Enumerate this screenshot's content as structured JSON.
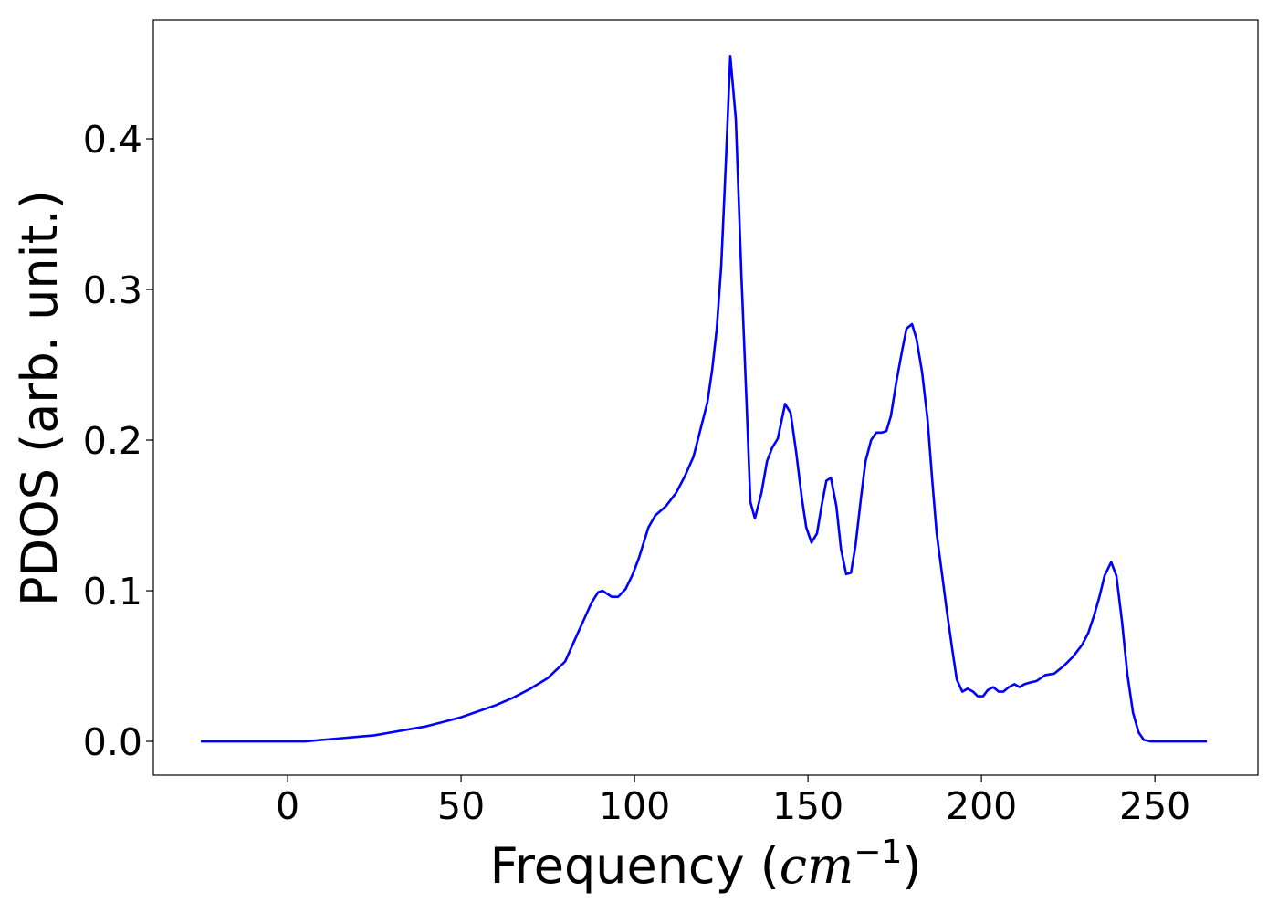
{
  "chart_data": {
    "type": "line",
    "xlabel": [
      "Frequency (",
      "cm",
      "−1",
      ")"
    ],
    "ylabel": "PDOS (arb. unit.)",
    "xlim": [
      -38.7,
      279.7
    ],
    "ylim": [
      -0.0224,
      0.4788
    ],
    "xticks": [
      0,
      50,
      100,
      150,
      200,
      250
    ],
    "yticks": [
      {
        "value": 0,
        "label": "0.0"
      },
      0.1,
      0.2,
      0.3,
      0.4
    ],
    "series": [
      {
        "color": "#0000ff",
        "x": [
          -25,
          0,
          5,
          10,
          15,
          20,
          25,
          30,
          35,
          40,
          45,
          50,
          55,
          60,
          65,
          70,
          75,
          80,
          82.9,
          87.6,
          89.5,
          90.8,
          93.4,
          95.3,
          97.4,
          99.5,
          101.3,
          104,
          106,
          109,
          112,
          114.5,
          117,
          119,
          121,
          122.4,
          123.7,
          125,
          126.3,
          127.6,
          129.2,
          130.8,
          132.4,
          133.4,
          134.7,
          136.6,
          138.2,
          139.7,
          141.3,
          143.4,
          145,
          146.6,
          148.2,
          149.5,
          151,
          152.6,
          153.9,
          155.3,
          156.6,
          158.2,
          159.5,
          161,
          162.4,
          163.7,
          165.3,
          166.6,
          168.2,
          169.7,
          171.3,
          172.6,
          173.9,
          175.5,
          177.1,
          178.4,
          180,
          181.3,
          182.9,
          184.5,
          185.8,
          187.1,
          188.7,
          190,
          191.6,
          192.9,
          194.5,
          196,
          197.6,
          198.9,
          200.5,
          201.8,
          203.4,
          205,
          206.3,
          207.9,
          209.5,
          211,
          212.4,
          213.9,
          215.8,
          218.4,
          221,
          223.7,
          226.3,
          229,
          230.8,
          232.4,
          233.9,
          235.5,
          237.4,
          238.9,
          240.5,
          242.1,
          243.7,
          245.3,
          246.8,
          248.7,
          265
        ],
        "values": [
          0,
          0,
          0,
          0.001,
          0.002,
          0.003,
          0.004,
          0.006,
          0.008,
          0.01,
          0.013,
          0.016,
          0.02,
          0.024,
          0.029,
          0.035,
          0.042,
          0.053,
          0.068,
          0.092,
          0.099,
          0.1,
          0.096,
          0.096,
          0.101,
          0.111,
          0.122,
          0.142,
          0.15,
          0.156,
          0.165,
          0.176,
          0.189,
          0.207,
          0.225,
          0.247,
          0.274,
          0.316,
          0.383,
          0.455,
          0.413,
          0.31,
          0.219,
          0.159,
          0.148,
          0.165,
          0.186,
          0.195,
          0.201,
          0.224,
          0.218,
          0.192,
          0.162,
          0.142,
          0.132,
          0.138,
          0.156,
          0.173,
          0.175,
          0.156,
          0.128,
          0.111,
          0.112,
          0.13,
          0.162,
          0.186,
          0.2,
          0.205,
          0.205,
          0.206,
          0.216,
          0.239,
          0.259,
          0.274,
          0.277,
          0.267,
          0.245,
          0.213,
          0.174,
          0.138,
          0.11,
          0.087,
          0.061,
          0.041,
          0.033,
          0.035,
          0.033,
          0.03,
          0.03,
          0.034,
          0.036,
          0.033,
          0.033,
          0.036,
          0.038,
          0.036,
          0.038,
          0.039,
          0.04,
          0.044,
          0.045,
          0.05,
          0.056,
          0.064,
          0.072,
          0.083,
          0.095,
          0.11,
          0.119,
          0.11,
          0.08,
          0.044,
          0.019,
          0.006,
          0.001,
          0,
          0
        ]
      }
    ]
  }
}
